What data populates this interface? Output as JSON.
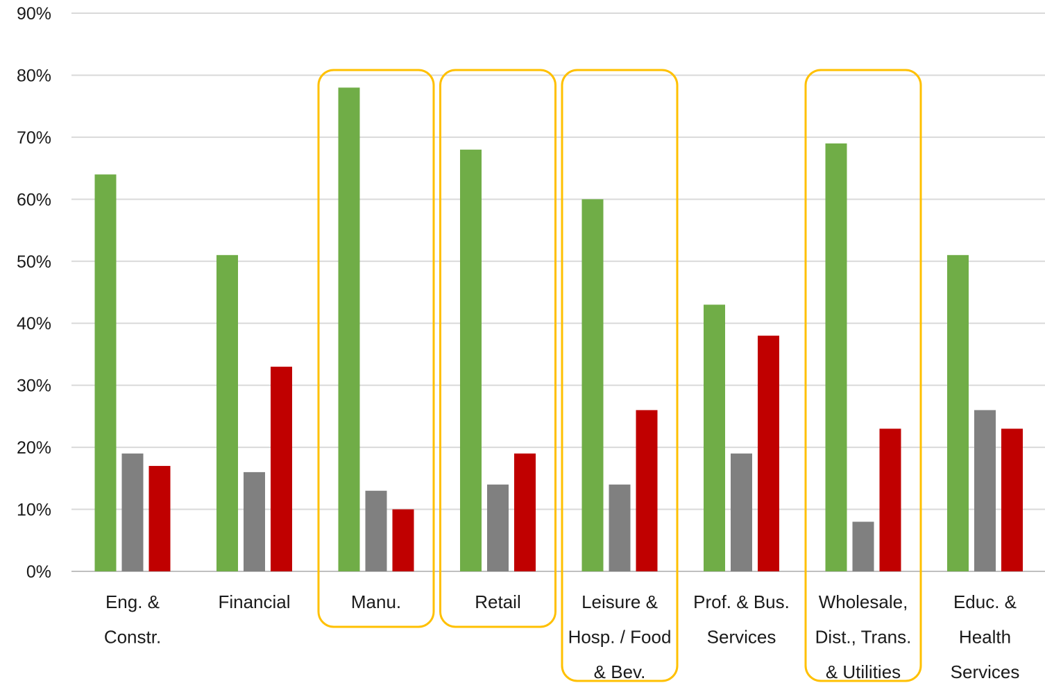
{
  "chart_data": {
    "type": "bar",
    "title": "",
    "xlabel": "",
    "ylabel": "",
    "ylim": [
      0,
      90
    ],
    "y_ticks": [
      0,
      10,
      20,
      30,
      40,
      50,
      60,
      70,
      80,
      90
    ],
    "y_tick_labels": [
      "0%",
      "10%",
      "20%",
      "30%",
      "40%",
      "50%",
      "60%",
      "70%",
      "80%",
      "90%"
    ],
    "grid": "horizontal",
    "legend": "none",
    "categories": [
      [
        "Eng. &",
        "Constr."
      ],
      [
        "Financial"
      ],
      [
        "Manu."
      ],
      [
        "Retail"
      ],
      [
        "Leisure &",
        "Hosp. / Food",
        "& Bev."
      ],
      [
        "Prof. & Bus.",
        "Services"
      ],
      [
        "Wholesale,",
        "Dist., Trans.",
        "& Utilities"
      ],
      [
        "Educ. &",
        "Health",
        "Services"
      ]
    ],
    "highlighted_categories": [
      2,
      3,
      4,
      6
    ],
    "highlight_color": "#FFC000",
    "series": [
      {
        "color": "#70AD47",
        "values": [
          64,
          51,
          78,
          68,
          60,
          43,
          69,
          51
        ]
      },
      {
        "color": "#808080",
        "values": [
          19,
          16,
          13,
          14,
          14,
          19,
          8,
          26
        ]
      },
      {
        "color": "#C00000",
        "values": [
          17,
          33,
          10,
          19,
          26,
          38,
          23,
          23
        ]
      }
    ]
  }
}
